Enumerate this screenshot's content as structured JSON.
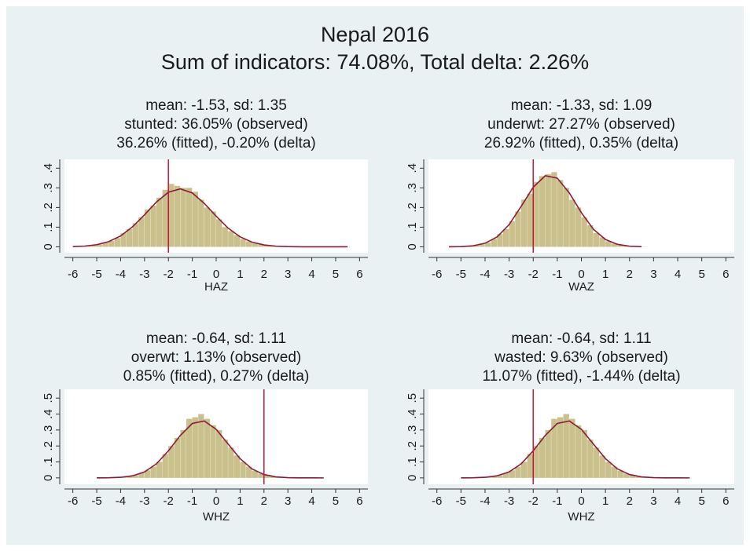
{
  "title": "Nepal 2016",
  "subtitle": "Sum of indicators: 74.08%, Total delta: 2.26%",
  "chart_data": [
    {
      "type": "histogram",
      "title": [
        "mean: -1.53, sd: 1.35",
        "stunted: 36.05% (observed)",
        "36.26% (fitted), -0.20% (delta)"
      ],
      "xlabel": "HAZ",
      "bins": [
        -6,
        -5.75,
        -5.5,
        -5.25,
        -5,
        -4.75,
        -4.5,
        -4.25,
        -4,
        -3.75,
        -3.5,
        -3.25,
        -3,
        -2.75,
        -2.5,
        -2.25,
        -2,
        -1.75,
        -1.5,
        -1.25,
        -1,
        -0.75,
        -0.5,
        -0.25,
        0,
        0.25,
        0.5,
        0.75,
        1,
        1.25,
        1.5,
        1.75,
        2,
        2.25,
        2.5,
        2.75,
        3,
        3.25,
        3.5,
        3.75,
        4,
        4.25,
        4.5,
        4.75,
        5,
        5.25,
        5.5
      ],
      "values": [
        0.002,
        0.004,
        0.005,
        0.008,
        0.012,
        0.02,
        0.03,
        0.045,
        0.07,
        0.09,
        0.12,
        0.15,
        0.19,
        0.21,
        0.25,
        0.29,
        0.32,
        0.31,
        0.3,
        0.3,
        0.28,
        0.24,
        0.2,
        0.18,
        0.14,
        0.1,
        0.08,
        0.06,
        0.04,
        0.028,
        0.018,
        0.012,
        0.008,
        0.005,
        0.003,
        0.002,
        0.001,
        0.001,
        0,
        0.001,
        0,
        0,
        0,
        0,
        0.001,
        0
      ],
      "color": "#c9c08c",
      "curve": {
        "x": [
          -6,
          -5.5,
          -5,
          -4.5,
          -4,
          -3.5,
          -3,
          -2.5,
          -2,
          -1.5,
          -1,
          -0.5,
          0,
          0.5,
          1,
          1.5,
          2,
          2.5,
          3,
          3.5,
          4,
          4.5,
          5,
          5.5
        ],
        "values": [
          0.0012,
          0.0039,
          0.0109,
          0.0263,
          0.0554,
          0.102,
          0.163,
          0.228,
          0.278,
          0.295,
          0.274,
          0.221,
          0.156,
          0.095,
          0.051,
          0.0238,
          0.0097,
          0.0034,
          0.001,
          0.0003,
          0.0001,
          0,
          0,
          0
        ],
        "color": "#8b1a3a"
      },
      "reference_line": -2,
      "reference_color": "#c8143c",
      "xlim": [
        -6.35,
        6.35
      ],
      "ylim": [
        -0.03,
        0.445
      ],
      "xticks": [
        -6,
        -5,
        -4,
        -3,
        -2,
        -1,
        0,
        1,
        2,
        3,
        4,
        5,
        6
      ],
      "yticks": [
        0,
        {
          "value": 0.1,
          "label": ".1"
        },
        {
          "value": 0.2,
          "label": ".2"
        },
        {
          "value": 0.3,
          "label": ".3"
        },
        {
          "value": 0.4,
          "label": ".4"
        }
      ]
    },
    {
      "type": "histogram",
      "title": [
        "mean: -1.33, sd: 1.09",
        "underwt: 27.27% (observed)",
        "26.92% (fitted), 0.35% (delta)"
      ],
      "xlabel": "WAZ",
      "bins": [
        -5.5,
        -5.25,
        -5,
        -4.75,
        -4.5,
        -4.25,
        -4,
        -3.75,
        -3.5,
        -3.25,
        -3,
        -2.75,
        -2.5,
        -2.25,
        -2,
        -1.75,
        -1.5,
        -1.25,
        -1,
        -0.75,
        -0.5,
        -0.25,
        0,
        0.25,
        0.5,
        0.75,
        1,
        1.25,
        1.5,
        1.75,
        2,
        2.25,
        2.5,
        2.75
      ],
      "values": [
        0,
        0.001,
        0.002,
        0.004,
        0.007,
        0.013,
        0.022,
        0.04,
        0.065,
        0.09,
        0.13,
        0.18,
        0.24,
        0.27,
        0.33,
        0.36,
        0.37,
        0.38,
        0.34,
        0.3,
        0.24,
        0.2,
        0.15,
        0.11,
        0.07,
        0.048,
        0.028,
        0.016,
        0.009,
        0.005,
        0.002,
        0.001,
        0.001
      ],
      "color": "#c9c08c",
      "curve": {
        "x": [
          -5.5,
          -5,
          -4.5,
          -4,
          -3.5,
          -3,
          -2.5,
          -2,
          -1.5,
          -1,
          -0.5,
          0,
          0.5,
          1,
          1.5,
          2,
          2.5
        ],
        "values": [
          0.0002,
          0.0013,
          0.0053,
          0.0182,
          0.0504,
          0.1131,
          0.2057,
          0.303,
          0.3616,
          0.3495,
          0.2741,
          0.1739,
          0.0893,
          0.0373,
          0.0126,
          0.0034,
          0.0008
        ],
        "color": "#8b1a3a"
      },
      "reference_line": -2,
      "reference_color": "#c8143c",
      "xlim": [
        -6.35,
        6.35
      ],
      "ylim": [
        -0.03,
        0.445
      ],
      "xticks": [
        -6,
        -5,
        -4,
        -3,
        -2,
        -1,
        0,
        1,
        2,
        3,
        4,
        5,
        6
      ],
      "yticks": [
        0,
        {
          "value": 0.1,
          "label": ".1"
        },
        {
          "value": 0.2,
          "label": ".2"
        },
        {
          "value": 0.3,
          "label": ".3"
        },
        {
          "value": 0.4,
          "label": ".4"
        }
      ]
    },
    {
      "type": "histogram",
      "title": [
        "mean: -0.64, sd: 1.11",
        "overwt: 1.13% (observed)",
        "0.85% (fitted), 0.27% (delta)"
      ],
      "xlabel": "WHZ",
      "bins": [
        -5,
        -4.75,
        -4.5,
        -4.25,
        -4,
        -3.75,
        -3.5,
        -3.25,
        -3,
        -2.75,
        -2.5,
        -2.25,
        -2,
        -1.75,
        -1.5,
        -1.25,
        -1,
        -0.75,
        -0.5,
        -0.25,
        0,
        0.25,
        0.5,
        0.75,
        1,
        1.25,
        1.5,
        1.75,
        2,
        2.25,
        2.5,
        2.75,
        3,
        3.25,
        3.5,
        3.75,
        4,
        4.25,
        4.5,
        4.75
      ],
      "values": [
        0,
        0.001,
        0.001,
        0.003,
        0.005,
        0.01,
        0.017,
        0.03,
        0.047,
        0.07,
        0.1,
        0.15,
        0.2,
        0.25,
        0.3,
        0.37,
        0.38,
        0.4,
        0.37,
        0.33,
        0.3,
        0.24,
        0.19,
        0.14,
        0.1,
        0.07,
        0.044,
        0.027,
        0.016,
        0.009,
        0.005,
        0.002,
        0.001,
        0.001,
        0,
        0,
        0,
        0,
        0
      ],
      "color": "#c9c08c",
      "curve": {
        "x": [
          -5,
          -4.5,
          -4,
          -3.5,
          -3,
          -2.5,
          -2,
          -1.5,
          -1,
          -0.5,
          0,
          0.5,
          1,
          1.5,
          2,
          2.5,
          3,
          3.5,
          4,
          4.5
        ],
        "values": [
          0.0002,
          0.0009,
          0.0037,
          0.013,
          0.0375,
          0.0883,
          0.1697,
          0.2662,
          0.341,
          0.3566,
          0.3043,
          0.212,
          0.1207,
          0.0562,
          0.0212,
          0.0066,
          0.0017,
          0.0003,
          0.0001,
          0
        ],
        "color": "#8b1a3a"
      },
      "reference_line": 2,
      "reference_color": "#c8143c",
      "xlim": [
        -6.35,
        6.35
      ],
      "ylim": [
        -0.04,
        0.555
      ],
      "xticks": [
        -6,
        -5,
        -4,
        -3,
        -2,
        -1,
        0,
        1,
        2,
        3,
        4,
        5,
        6
      ],
      "yticks": [
        0,
        {
          "value": 0.1,
          "label": ".1"
        },
        {
          "value": 0.2,
          "label": ".2"
        },
        {
          "value": 0.3,
          "label": ".3"
        },
        {
          "value": 0.4,
          "label": ".4"
        },
        {
          "value": 0.5,
          "label": ".5"
        }
      ]
    },
    {
      "type": "histogram",
      "title": [
        "mean: -0.64, sd: 1.11",
        "wasted: 9.63% (observed)",
        "11.07% (fitted), -1.44% (delta)"
      ],
      "xlabel": "WHZ",
      "bins": [
        -5,
        -4.75,
        -4.5,
        -4.25,
        -4,
        -3.75,
        -3.5,
        -3.25,
        -3,
        -2.75,
        -2.5,
        -2.25,
        -2,
        -1.75,
        -1.5,
        -1.25,
        -1,
        -0.75,
        -0.5,
        -0.25,
        0,
        0.25,
        0.5,
        0.75,
        1,
        1.25,
        1.5,
        1.75,
        2,
        2.25,
        2.5,
        2.75,
        3,
        3.25,
        3.5,
        3.75,
        4,
        4.25,
        4.5,
        4.75
      ],
      "values": [
        0,
        0.001,
        0.001,
        0.003,
        0.005,
        0.01,
        0.017,
        0.03,
        0.047,
        0.07,
        0.1,
        0.15,
        0.2,
        0.25,
        0.3,
        0.37,
        0.38,
        0.4,
        0.37,
        0.33,
        0.3,
        0.24,
        0.19,
        0.14,
        0.1,
        0.07,
        0.044,
        0.027,
        0.016,
        0.009,
        0.005,
        0.002,
        0.001,
        0.001,
        0,
        0,
        0,
        0,
        0
      ],
      "color": "#c9c08c",
      "curve": {
        "x": [
          -5,
          -4.5,
          -4,
          -3.5,
          -3,
          -2.5,
          -2,
          -1.5,
          -1,
          -0.5,
          0,
          0.5,
          1,
          1.5,
          2,
          2.5,
          3,
          3.5,
          4,
          4.5
        ],
        "values": [
          0.0002,
          0.0009,
          0.0037,
          0.013,
          0.0375,
          0.0883,
          0.1697,
          0.2662,
          0.341,
          0.3566,
          0.3043,
          0.212,
          0.1207,
          0.0562,
          0.0212,
          0.0066,
          0.0017,
          0.0003,
          0.0001,
          0
        ],
        "color": "#8b1a3a"
      },
      "reference_line": -2,
      "reference_color": "#c8143c",
      "xlim": [
        -6.35,
        6.35
      ],
      "ylim": [
        -0.04,
        0.555
      ],
      "xticks": [
        -6,
        -5,
        -4,
        -3,
        -2,
        -1,
        0,
        1,
        2,
        3,
        4,
        5,
        6
      ],
      "yticks": [
        0,
        {
          "value": 0.1,
          "label": ".1"
        },
        {
          "value": 0.2,
          "label": ".2"
        },
        {
          "value": 0.3,
          "label": ".3"
        },
        {
          "value": 0.4,
          "label": ".4"
        },
        {
          "value": 0.5,
          "label": ".5"
        }
      ]
    }
  ]
}
